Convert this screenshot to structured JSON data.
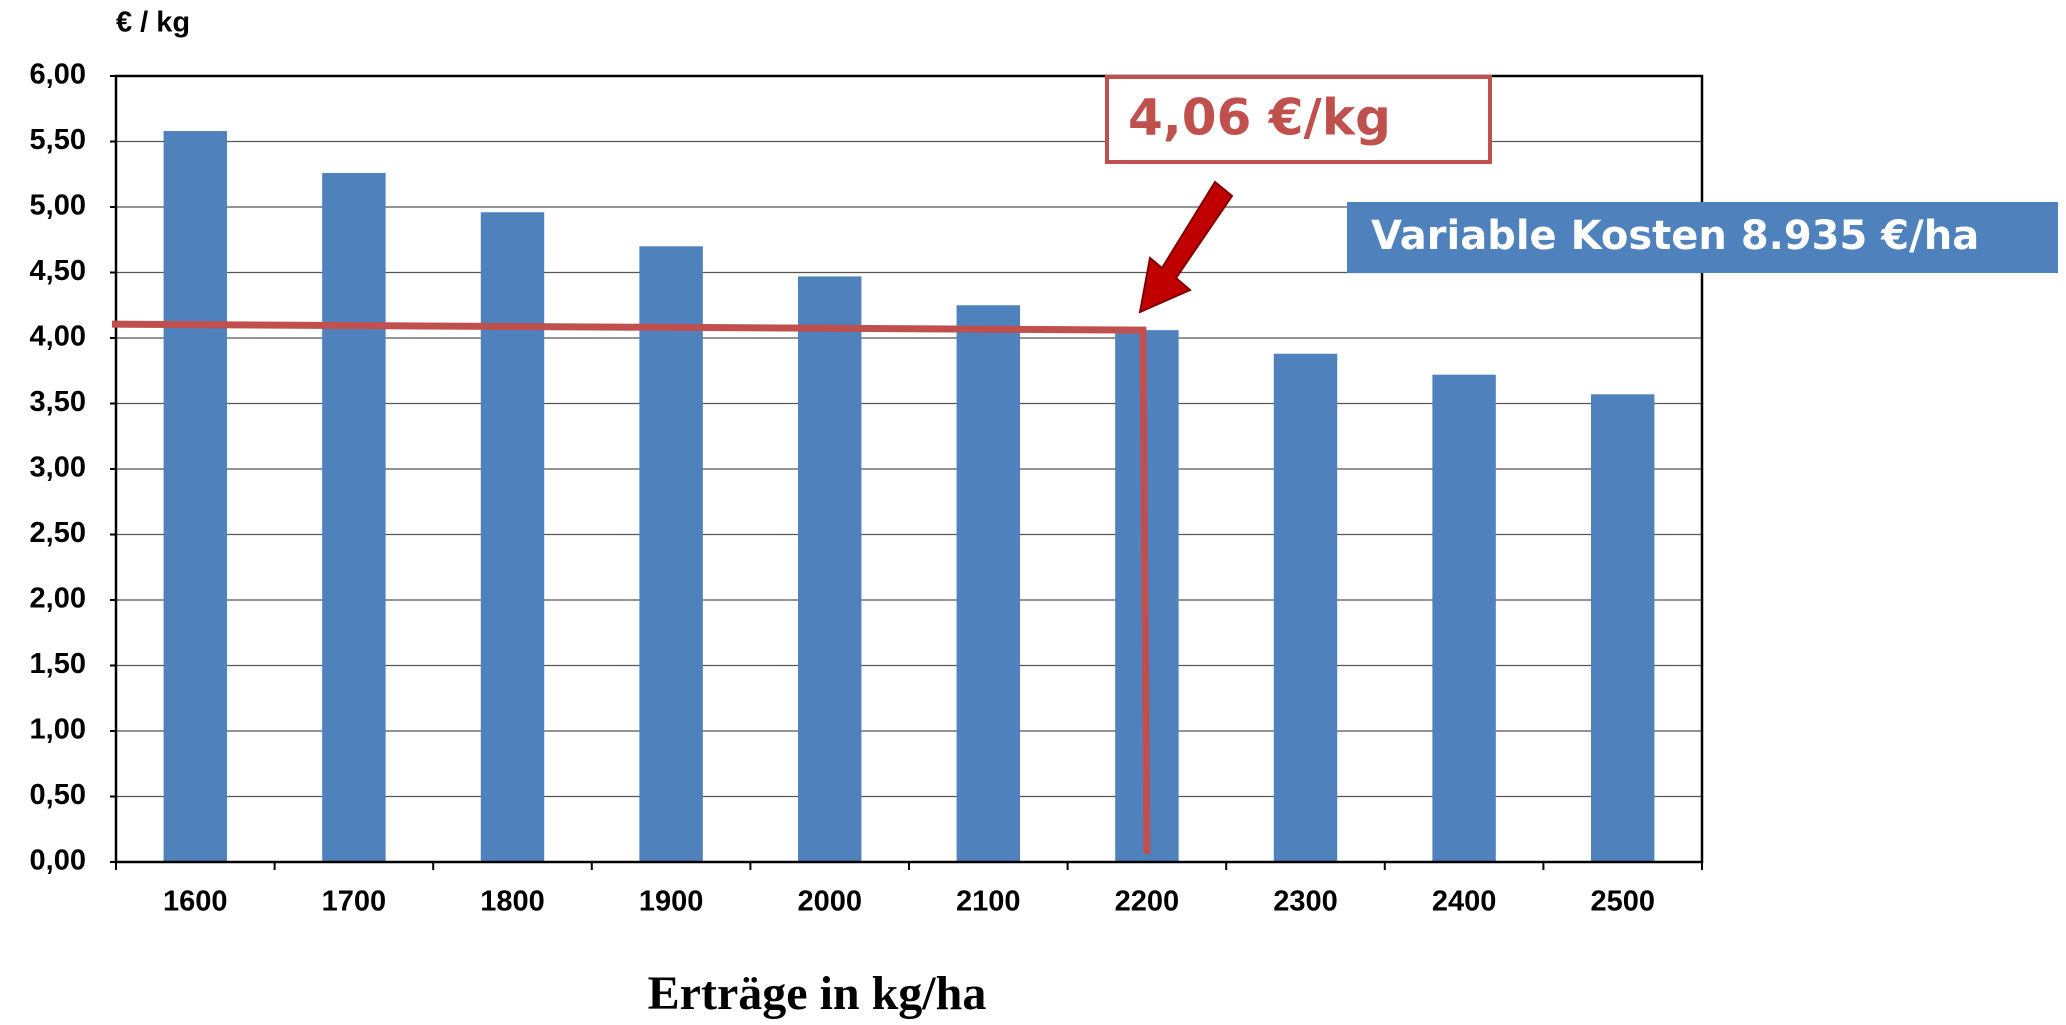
{
  "chart_data": {
    "type": "bar",
    "y_axis_label": "€ / kg",
    "x_axis_label": "Erträge in kg/ha",
    "categories": [
      "1600",
      "1700",
      "1800",
      "1900",
      "2000",
      "2100",
      "2200",
      "2300",
      "2400",
      "2500"
    ],
    "values": [
      5.58,
      5.26,
      4.96,
      4.7,
      4.47,
      4.25,
      4.06,
      3.88,
      3.72,
      3.57
    ],
    "color": "#4f81bd",
    "ylim": [
      0,
      6
    ],
    "yticks": [
      {
        "value": 0,
        "label": "0,00"
      },
      {
        "value": 0.5,
        "label": "0,50"
      },
      {
        "value": 1,
        "label": "1,00"
      },
      {
        "value": 1.5,
        "label": "1,50"
      },
      {
        "value": 2,
        "label": "2,00"
      },
      {
        "value": 2.5,
        "label": "2,50"
      },
      {
        "value": 3,
        "label": "3,00"
      },
      {
        "value": 3.5,
        "label": "3,50"
      },
      {
        "value": 4,
        "label": "4,00"
      },
      {
        "value": 4.5,
        "label": "4,50"
      },
      {
        "value": 5,
        "label": "5,00"
      },
      {
        "value": 5.5,
        "label": "5,50"
      },
      {
        "value": 6,
        "label": "6,00"
      }
    ],
    "grid": true,
    "annotations": [
      "4,06 €/kg",
      "Variable Kosten 8.935 €/ha"
    ]
  }
}
